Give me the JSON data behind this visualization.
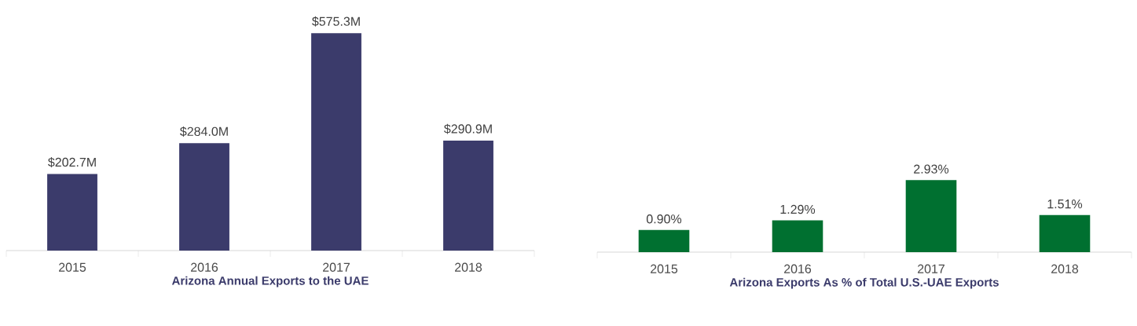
{
  "chart_data": [
    {
      "type": "bar",
      "xlabel": "Arizona Annual Exports to the UAE",
      "categories": [
        "2015",
        "2016",
        "2017",
        "2018"
      ],
      "values": [
        202.7,
        284.0,
        575.3,
        290.9
      ],
      "value_labels": [
        "$202.7M",
        "$284.0M",
        "$575.3M",
        "$290.9M"
      ],
      "color": "#3b3b6b",
      "tick_labels": "x"
    },
    {
      "type": "bar",
      "xlabel": "Arizona Exports As % of Total U.S.-UAE Exports",
      "categories": [
        "2015",
        "2016",
        "2017",
        "2018"
      ],
      "values": [
        0.9,
        1.29,
        2.93,
        1.51
      ],
      "value_labels": [
        "0.90%",
        "1.29%",
        "2.93%",
        "1.51%"
      ],
      "color": "#007030",
      "tick_labels": "x"
    }
  ]
}
